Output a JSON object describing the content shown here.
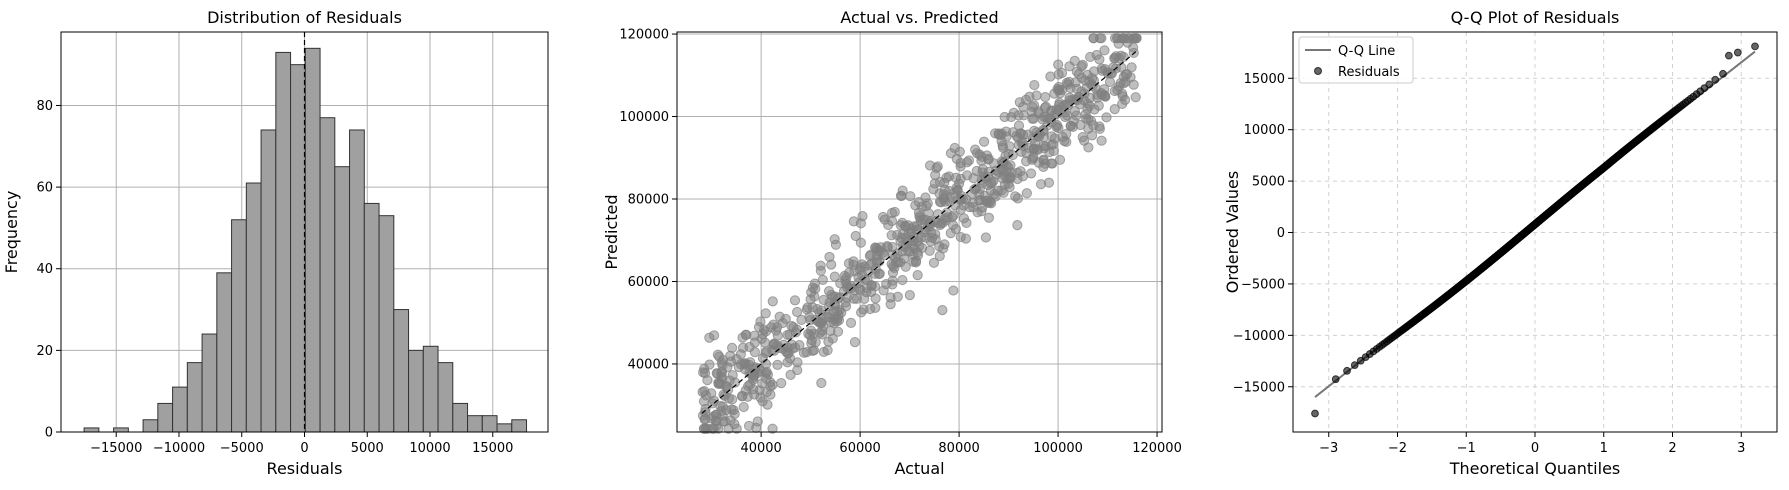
{
  "chart_data": [
    {
      "type": "histogram",
      "title": "Distribution of Residuals",
      "xlabel": "Residuals",
      "ylabel": "Frequency",
      "xlim": [
        -19400,
        19400
      ],
      "ylim": [
        0,
        98
      ],
      "x_ticks": [
        -15000,
        -10000,
        -5000,
        0,
        5000,
        10000,
        15000
      ],
      "x_tick_labels": [
        "−15000",
        "−10000",
        "−5000",
        "0",
        "5000",
        "10000",
        "15000"
      ],
      "y_ticks": [
        0,
        20,
        40,
        60,
        80
      ],
      "y_tick_labels": [
        "0",
        "20",
        "40",
        "60",
        "80"
      ],
      "bin_start": -17560,
      "bin_width": 1175,
      "counts": [
        1,
        0,
        1,
        0,
        3,
        7,
        11,
        17,
        24,
        39,
        52,
        61,
        74,
        93,
        90,
        94,
        77,
        65,
        74,
        56,
        53,
        30,
        20,
        21,
        17,
        7,
        4,
        4,
        2,
        3
      ],
      "vline": 0,
      "grid": true,
      "color": "#a0a0a0"
    },
    {
      "type": "scatter",
      "title": "Actual vs. Predicted",
      "xlabel": "Actual",
      "ylabel": "Predicted",
      "xlim": [
        23000,
        121000
      ],
      "ylim": [
        23500,
        120500
      ],
      "x_ticks": [
        40000,
        60000,
        80000,
        100000,
        120000
      ],
      "x_tick_labels": [
        "40000",
        "60000",
        "80000",
        "100000",
        "120000"
      ],
      "y_ticks": [
        40000,
        60000,
        80000,
        100000,
        120000
      ],
      "y_tick_labels": [
        "40000",
        "60000",
        "80000",
        "100000",
        "120000"
      ],
      "reference_line": [
        [
          28000,
          28000
        ],
        [
          116000,
          116000
        ]
      ],
      "x_range": [
        28000,
        116000
      ],
      "noise_sd": 5900,
      "n_points": 850,
      "grid": true,
      "color": "#808080"
    },
    {
      "type": "scatter",
      "title": "Q-Q Plot of Residuals",
      "xlabel": "Theoretical Quantiles",
      "ylabel": "Ordered Values",
      "xlim": [
        -3.52,
        3.52
      ],
      "ylim": [
        -19400,
        19500
      ],
      "x_ticks": [
        -3,
        -2,
        -1,
        0,
        1,
        2,
        3
      ],
      "x_tick_labels": [
        "−3",
        "−2",
        "−1",
        "0",
        "1",
        "2",
        "3"
      ],
      "y_ticks": [
        -15000,
        -10000,
        -5000,
        0,
        5000,
        10000,
        15000
      ],
      "y_tick_labels": [
        "−15000",
        "−10000",
        "−5000",
        "0",
        "5000",
        "10000",
        "15000"
      ],
      "qq_line": [
        [
          -3.2,
          -16000
        ],
        [
          3.2,
          17600
        ]
      ],
      "n_points": 800,
      "sample_sd": 5250,
      "tail_outliers": [
        [
          -3.2,
          -17600
        ],
        [
          3.2,
          18100
        ],
        [
          2.95,
          17500
        ],
        [
          2.82,
          17200
        ]
      ],
      "legend": [
        "Q-Q Line",
        "Residuals"
      ],
      "legend_position": "top-left",
      "grid": "dashed",
      "color": "#000000"
    }
  ]
}
